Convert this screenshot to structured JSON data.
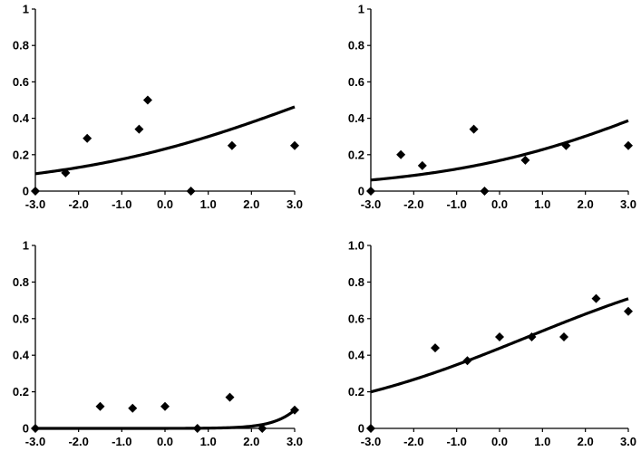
{
  "chart_data": [
    {
      "type": "scatter",
      "panel": "top-left",
      "xlim": [
        -3.0,
        3.0
      ],
      "ylim": [
        0,
        1
      ],
      "xticks": [
        "-3.0",
        "-2.0",
        "-1.0",
        "0.0",
        "1.0",
        "2.0",
        "3.0"
      ],
      "yticks": [
        "0",
        "0.2",
        "0.4",
        "0.6",
        "0.8",
        "1"
      ],
      "grid": false,
      "points": [
        {
          "x": -3.0,
          "y": 0.0
        },
        {
          "x": -2.3,
          "y": 0.1
        },
        {
          "x": -1.8,
          "y": 0.29
        },
        {
          "x": -0.6,
          "y": 0.34
        },
        {
          "x": -0.4,
          "y": 0.5
        },
        {
          "x": 0.6,
          "y": 0.0
        },
        {
          "x": 1.55,
          "y": 0.25
        },
        {
          "x": 3.0,
          "y": 0.25
        }
      ],
      "curve": {
        "type": "logistic",
        "a": 0.35,
        "b": -1.2
      }
    },
    {
      "type": "scatter",
      "panel": "top-right",
      "xlim": [
        -3.0,
        3.0
      ],
      "ylim": [
        0,
        1
      ],
      "xticks": [
        "-3.0",
        "-2.0",
        "-1.0",
        "0.0",
        "1.0",
        "2.0",
        "3.0"
      ],
      "yticks": [
        "0",
        "0.2",
        "0.4",
        "0.6",
        "0.8",
        "1"
      ],
      "grid": false,
      "points": [
        {
          "x": -3.0,
          "y": 0.0
        },
        {
          "x": -2.3,
          "y": 0.2
        },
        {
          "x": -1.8,
          "y": 0.14
        },
        {
          "x": -0.6,
          "y": 0.34
        },
        {
          "x": -0.35,
          "y": 0.0
        },
        {
          "x": 0.6,
          "y": 0.17
        },
        {
          "x": 1.55,
          "y": 0.25
        },
        {
          "x": 3.0,
          "y": 0.25
        }
      ],
      "curve": {
        "type": "logistic",
        "a": 0.38,
        "b": -1.6
      }
    },
    {
      "type": "scatter",
      "panel": "bottom-left",
      "xlim": [
        -3.0,
        3.0
      ],
      "ylim": [
        0,
        1
      ],
      "xticks": [
        "-3.0",
        "-2.0",
        "-1.0",
        "0.0",
        "1.0",
        "2.0",
        "3.0"
      ],
      "yticks": [
        "0",
        "0.2",
        "0.4",
        "0.6",
        "0.8",
        "1"
      ],
      "grid": false,
      "points": [
        {
          "x": -3.0,
          "y": 0.0
        },
        {
          "x": -1.5,
          "y": 0.12
        },
        {
          "x": -0.75,
          "y": 0.11
        },
        {
          "x": 0.0,
          "y": 0.12
        },
        {
          "x": 0.75,
          "y": 0.0
        },
        {
          "x": 1.5,
          "y": 0.17
        },
        {
          "x": 2.25,
          "y": 0.0
        },
        {
          "x": 3.0,
          "y": 0.1
        }
      ],
      "curve": {
        "type": "logistic",
        "a": 2.2,
        "b": -8.8
      }
    },
    {
      "type": "scatter",
      "panel": "bottom-right",
      "xlim": [
        -3.0,
        3.0
      ],
      "ylim": [
        0,
        1
      ],
      "xticks": [
        "-3.0",
        "-2.0",
        "-1.0",
        "0.0",
        "1.0",
        "2.0",
        "3.0"
      ],
      "yticks": [
        "0",
        "0.2",
        "0.4",
        "0.6",
        "0.8",
        "1.0"
      ],
      "grid": false,
      "points": [
        {
          "x": -3.0,
          "y": 0.0
        },
        {
          "x": -1.5,
          "y": 0.44
        },
        {
          "x": -0.75,
          "y": 0.37
        },
        {
          "x": 0.0,
          "y": 0.5
        },
        {
          "x": 0.75,
          "y": 0.5
        },
        {
          "x": 1.5,
          "y": 0.5
        },
        {
          "x": 2.25,
          "y": 0.71
        },
        {
          "x": 3.0,
          "y": 0.64
        }
      ],
      "curve": {
        "type": "logistic",
        "a": 0.38,
        "b": -0.25
      }
    }
  ]
}
